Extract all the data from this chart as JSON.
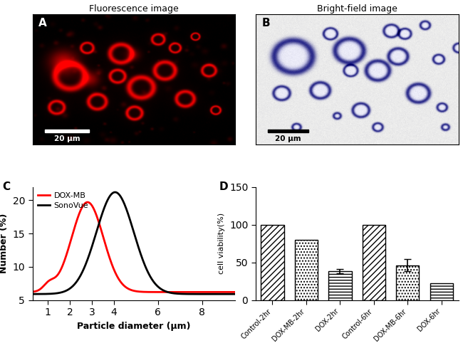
{
  "panel_C": {
    "xlabel": "Particle diameter (μm)",
    "ylabel": "Number (%)",
    "ylim": [
      5,
      22
    ],
    "yticks": [
      5,
      10,
      15,
      20
    ],
    "xticks": [
      1,
      2,
      3,
      4,
      6,
      8
    ],
    "dox_mb_color": "#ff0000",
    "sonovue_color": "#000000",
    "legend_labels": [
      "DOX-MB",
      "SonoVue"
    ],
    "label": "C",
    "baseline_dox": 6.2,
    "amp_dox": 13.5,
    "mu_dox": 2.8,
    "sigma_dox": 0.72,
    "shoulder_amp": 1.0,
    "shoulder_mu": 1.05,
    "shoulder_sigma": 0.25,
    "baseline_sono": 5.9,
    "amp_sono": 15.3,
    "mu_sono": 4.05,
    "sigma_sono": 0.85
  },
  "panel_D": {
    "categories": [
      "Control-2hr",
      "DOX-MB-2hr",
      "DOX-2hr",
      "Control-6hr",
      "DOX-MB-6hr",
      "DOX-6hr"
    ],
    "values": [
      100,
      80,
      38,
      100,
      46,
      22
    ],
    "errors": [
      0,
      0,
      3,
      0,
      8,
      0
    ],
    "ylabel": "cell viability(%)",
    "ylim": [
      0,
      150
    ],
    "yticks": [
      0,
      50,
      100,
      150
    ],
    "label": "D",
    "hatches": [
      "////",
      "....",
      "----",
      "////",
      "....",
      "----"
    ]
  },
  "panel_A": {
    "title": "Fluorescence image",
    "label": "A",
    "scale_text": "20 μm"
  },
  "panel_B": {
    "title": "Bright-field image",
    "label": "B",
    "scale_text": "20 μm"
  },
  "bg_color": "#ffffff"
}
